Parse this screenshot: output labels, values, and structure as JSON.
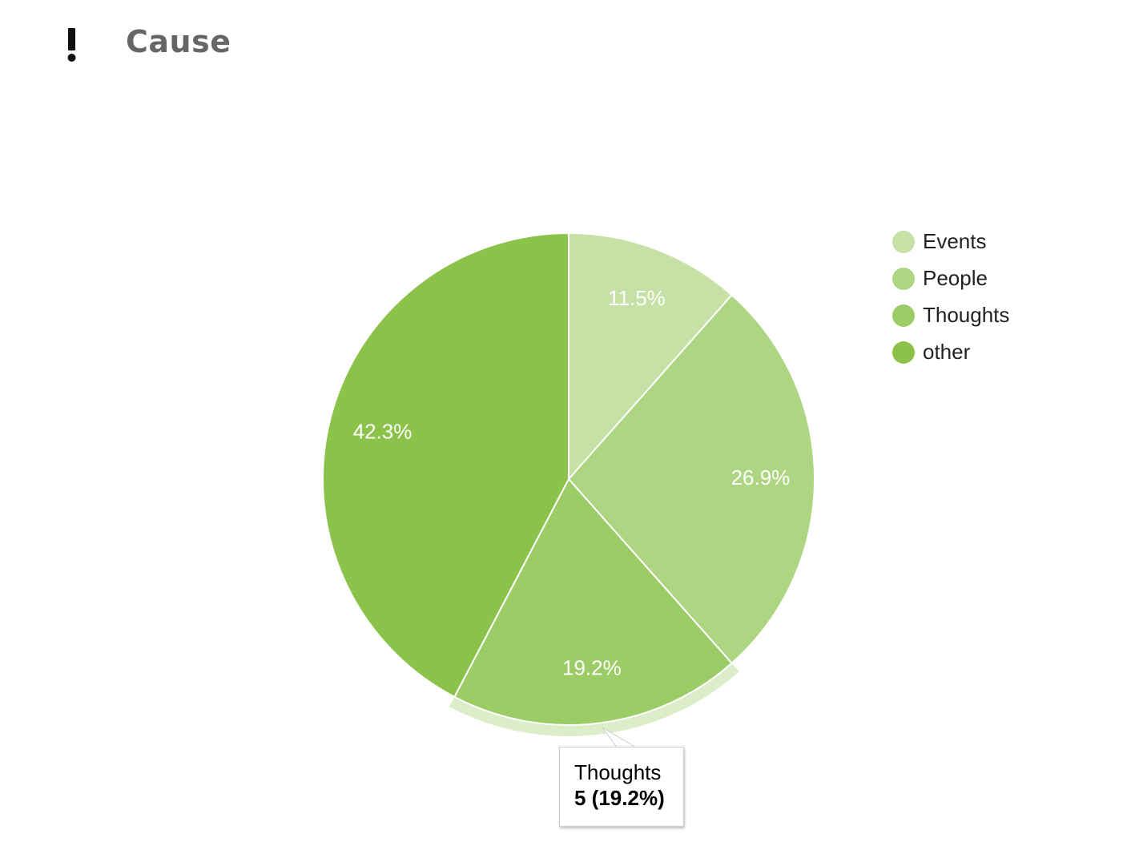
{
  "header": {
    "icon": "exclamation-icon",
    "title": "Cause"
  },
  "chart_data": {
    "type": "pie",
    "categories": [
      "Events",
      "People",
      "Thoughts",
      "other"
    ],
    "values": [
      3,
      7,
      5,
      11
    ],
    "percent_labels": [
      "11.5%",
      "26.9%",
      "19.2%",
      "42.3%"
    ],
    "colors": [
      "#c5e1a5",
      "#aed581",
      "#9ccc65",
      "#8bc34a"
    ],
    "legend_position": "right",
    "highlighted": "Thoughts"
  },
  "tooltip": {
    "name": "Thoughts",
    "value": "5 (19.2%)"
  }
}
